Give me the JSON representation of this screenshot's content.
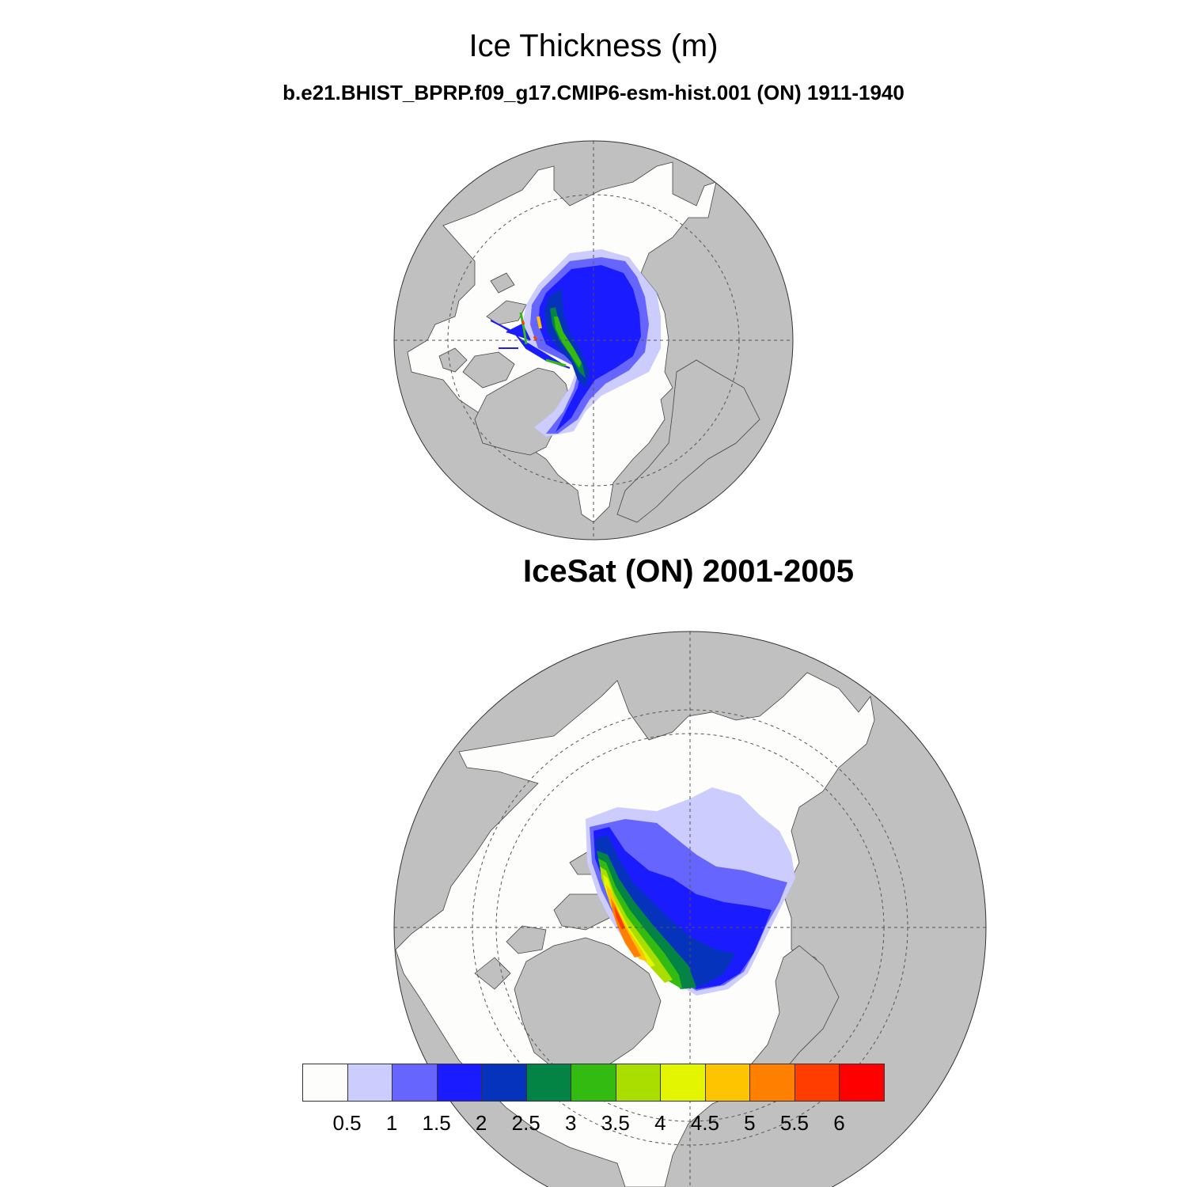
{
  "title": "Ice Thickness (m)",
  "panels": [
    {
      "label": "b.e21.BHIST_BPRP.f09_g17.CMIP6-esm-hist.001 (ON) 1911-1940"
    },
    {
      "label": "IceSat (ON) 2001-2005"
    }
  ],
  "colorbar": {
    "labels": [
      "0.5",
      "1",
      "1.5",
      "2",
      "2.5",
      "3",
      "3.5",
      "4",
      "4.5",
      "5",
      "5.5",
      "6"
    ],
    "colors": [
      "#fdfdfb",
      "#ccccff",
      "#6666ff",
      "#1b1bff",
      "#0533bb",
      "#048444",
      "#33bb11",
      "#aadd00",
      "#e4f500",
      "#ffc400",
      "#ff7f00",
      "#ff3d00",
      "#ff0000"
    ]
  },
  "colors": {
    "land": "#c0c0c0",
    "ocean": "#fdfdfb"
  }
}
